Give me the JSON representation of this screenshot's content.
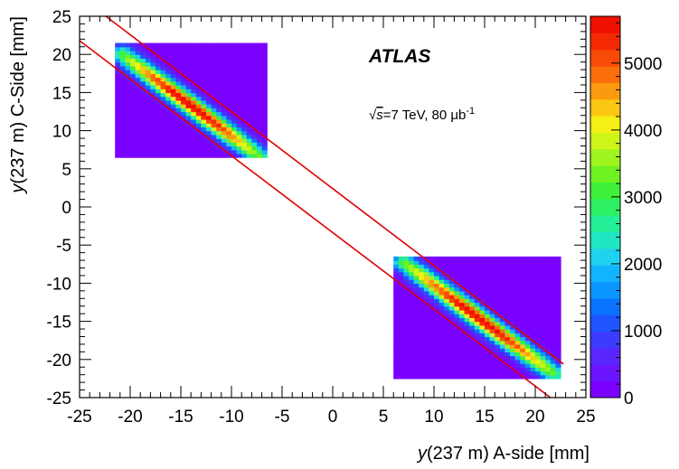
{
  "chart_data": {
    "type": "heatmap",
    "xlabel_italic": "y",
    "xlabel_rest": "(237 m) A-side [mm]",
    "ylabel_italic": "y",
    "ylabel_rest": "(237 m) C-Side [mm]",
    "xlim": [
      -25,
      25
    ],
    "ylim": [
      -25,
      25
    ],
    "x_ticks": [
      -25,
      -20,
      -15,
      -10,
      -5,
      0,
      5,
      10,
      15,
      20,
      25
    ],
    "y_ticks": [
      -25,
      -20,
      -15,
      -10,
      -5,
      0,
      5,
      10,
      15,
      20,
      25
    ],
    "z_range": [
      0,
      5700
    ],
    "z_ticks": [
      0,
      1000,
      2000,
      3000,
      4000,
      5000
    ],
    "palette": [
      "#7a00ff",
      "#6b14ff",
      "#5a26ff",
      "#3c3cff",
      "#1e55ff",
      "#0a73ff",
      "#0a96ff",
      "#13b4ff",
      "#1fd2ee",
      "#20e6c4",
      "#24ef96",
      "#2ef063",
      "#3ef03a",
      "#6ef222",
      "#a0f41e",
      "#cef51a",
      "#f5f015",
      "#fac812",
      "#fa9a0e",
      "#fa6e0b",
      "#f84a08",
      "#f52a05",
      "#f01000"
    ],
    "regions": [
      {
        "x": [
          -21.5,
          -6.5
        ],
        "y": [
          6.5,
          21.5
        ],
        "band_from": [
          -20.8,
          20.1
        ],
        "band_to": [
          -7.2,
          6.6
        ],
        "peak": 5600,
        "background": 150
      },
      {
        "x": [
          6.0,
          22.5
        ],
        "y": [
          -22.5,
          -6.5
        ],
        "band_from": [
          7.0,
          -7.2
        ],
        "band_to": [
          21.8,
          -21.8
        ],
        "peak": 5600,
        "background": 150
      }
    ],
    "cut_lines": [
      {
        "from": [
          -22.4,
          25
        ],
        "to": [
          22.8,
          -20.6
        ]
      },
      {
        "from": [
          -25,
          21.8
        ],
        "to": [
          21.5,
          -25
        ]
      }
    ],
    "cut_line_color": "#e00000",
    "annotations": {
      "experiment": "ATLAS",
      "energy_sqrt": "√",
      "energy_s": "s",
      "energy_text": "=7 TeV, 80 μb",
      "energy_sup": "-1"
    }
  }
}
